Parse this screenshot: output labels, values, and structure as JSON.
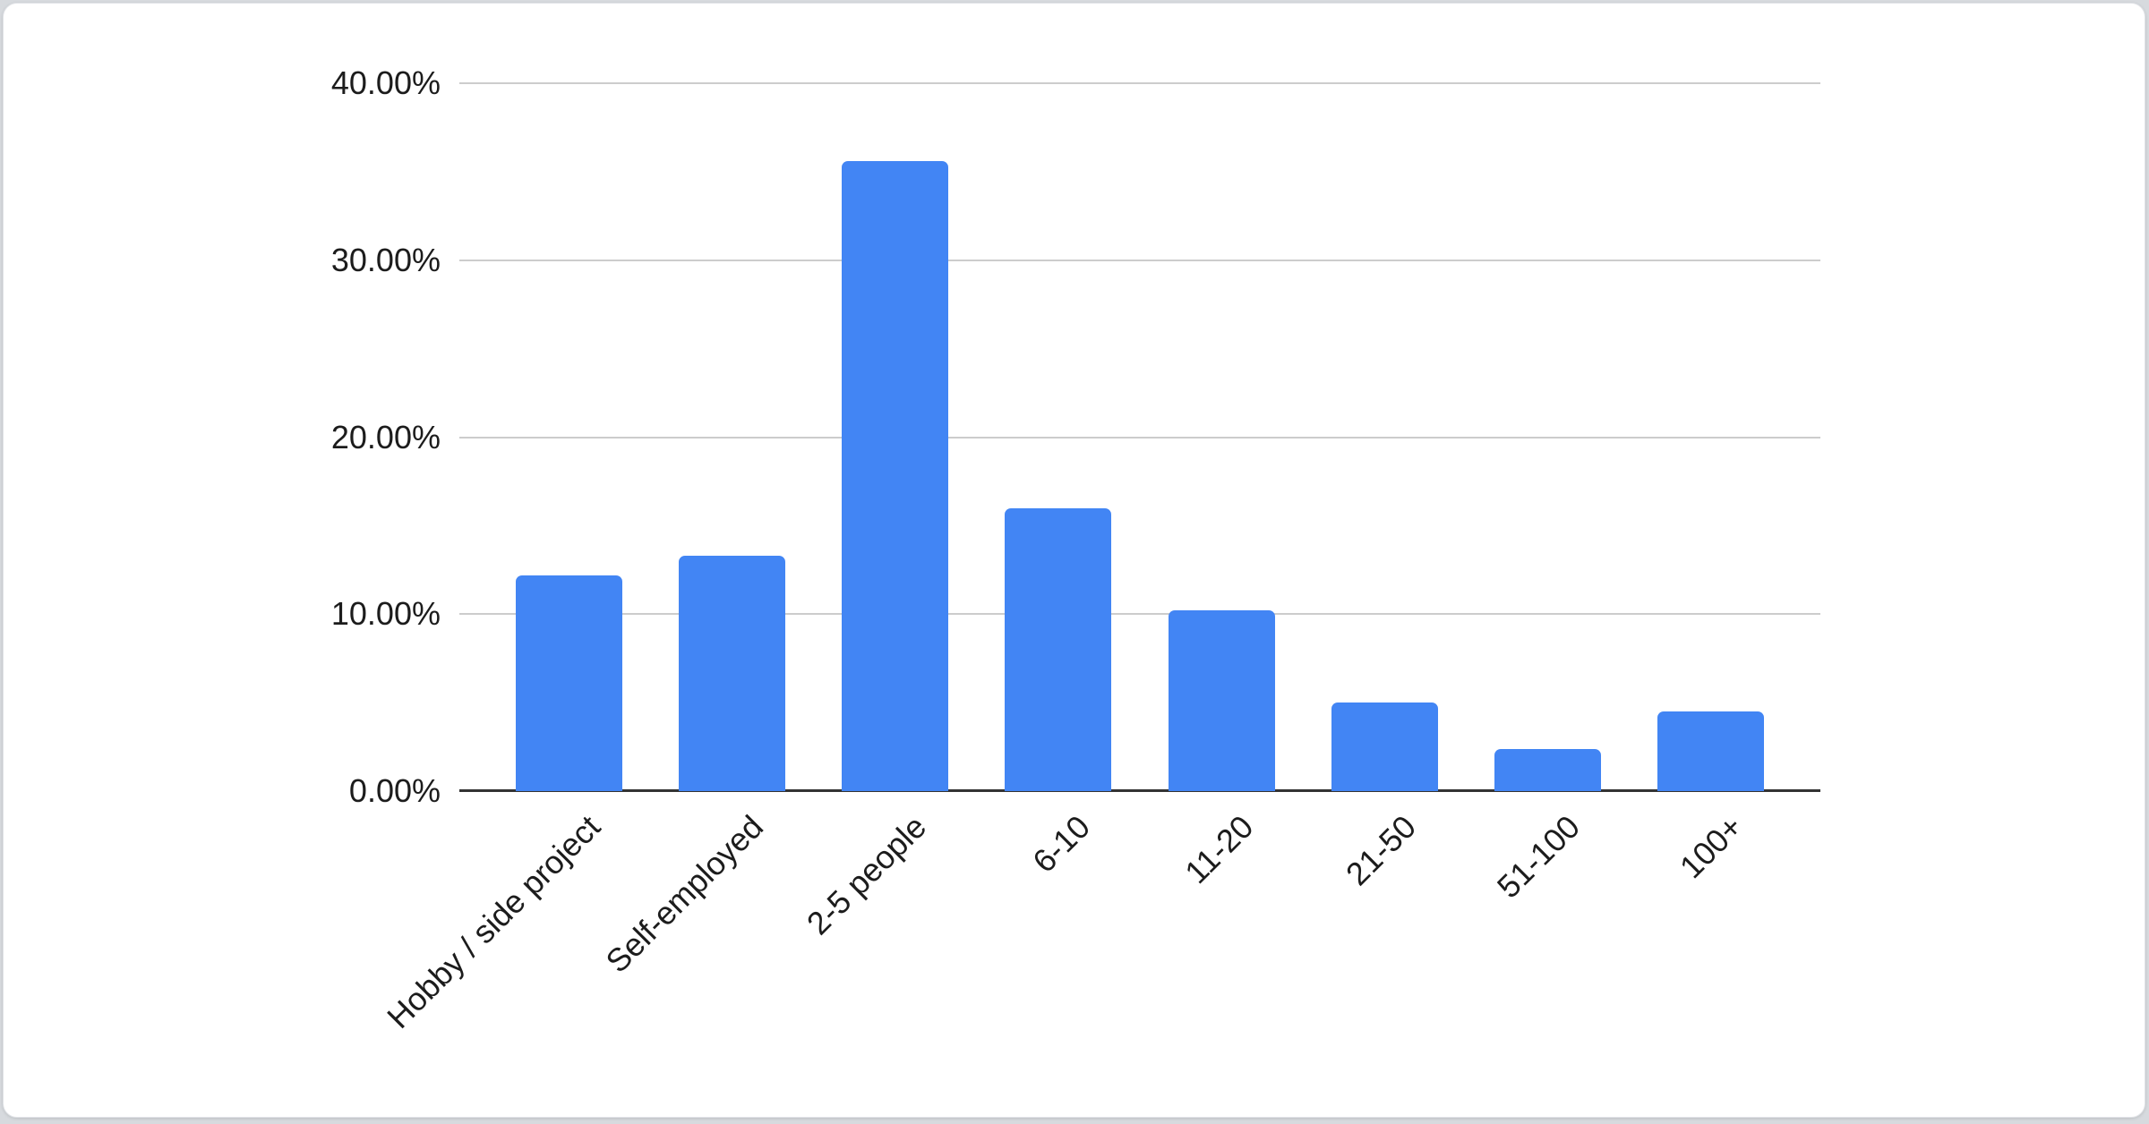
{
  "chart_data": {
    "type": "bar",
    "title": "",
    "xlabel": "",
    "ylabel": "",
    "categories": [
      "Hobby / side project",
      "Self-employed",
      "2-5 people",
      "6-10",
      "11-20",
      "21-50",
      "51-100",
      "100+"
    ],
    "values": [
      12.2,
      13.3,
      35.6,
      16.0,
      10.2,
      5.0,
      2.4,
      4.5
    ],
    "value_unit": "%",
    "ylim": [
      0,
      40
    ],
    "ytick_step": 10,
    "ytick_labels": [
      "0.00%",
      "10.00%",
      "20.00%",
      "30.00%",
      "40.00%"
    ],
    "grid": true,
    "legend_position": "none",
    "x_label_rotation_deg": -45
  },
  "colors": {
    "bar_fill": "#4285f4",
    "grid_line": "#cccccc",
    "axis_line": "#333333",
    "tick_text": "#1c1c1c",
    "card_background": "#ffffff",
    "page_background": "#d7dade"
  }
}
